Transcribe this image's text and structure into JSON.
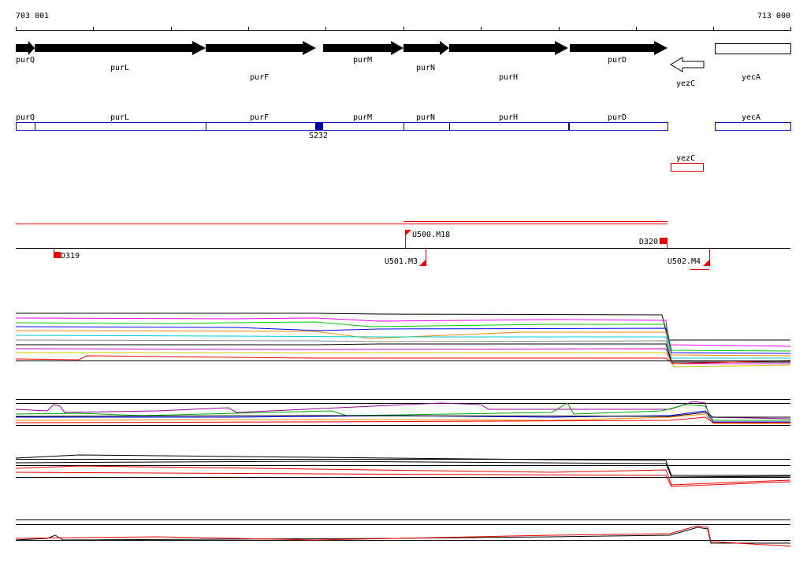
{
  "ruler": {
    "start": "703 001",
    "end": "713 000"
  },
  "genes": [
    {
      "label": "purQ"
    },
    {
      "label": "purL"
    },
    {
      "label": "purF"
    },
    {
      "label": "purM"
    },
    {
      "label": "purN"
    },
    {
      "label": "purH"
    },
    {
      "label": "purD"
    },
    {
      "label": "yezC"
    },
    {
      "label": "yecA"
    }
  ],
  "annotations": [
    {
      "label": "purQ"
    },
    {
      "label": "purL"
    },
    {
      "label": "purF"
    },
    {
      "label": "purM"
    },
    {
      "label": "purN"
    },
    {
      "label": "purH"
    },
    {
      "label": "purD"
    },
    {
      "label": "yecA"
    },
    {
      "label": "yezC"
    }
  ],
  "site": {
    "label": "S232"
  },
  "markers": [
    {
      "label": "D319"
    },
    {
      "label": "U500.M18"
    },
    {
      "label": "D320"
    },
    {
      "label": "U501.M3"
    },
    {
      "label": "U502.M4"
    }
  ]
}
